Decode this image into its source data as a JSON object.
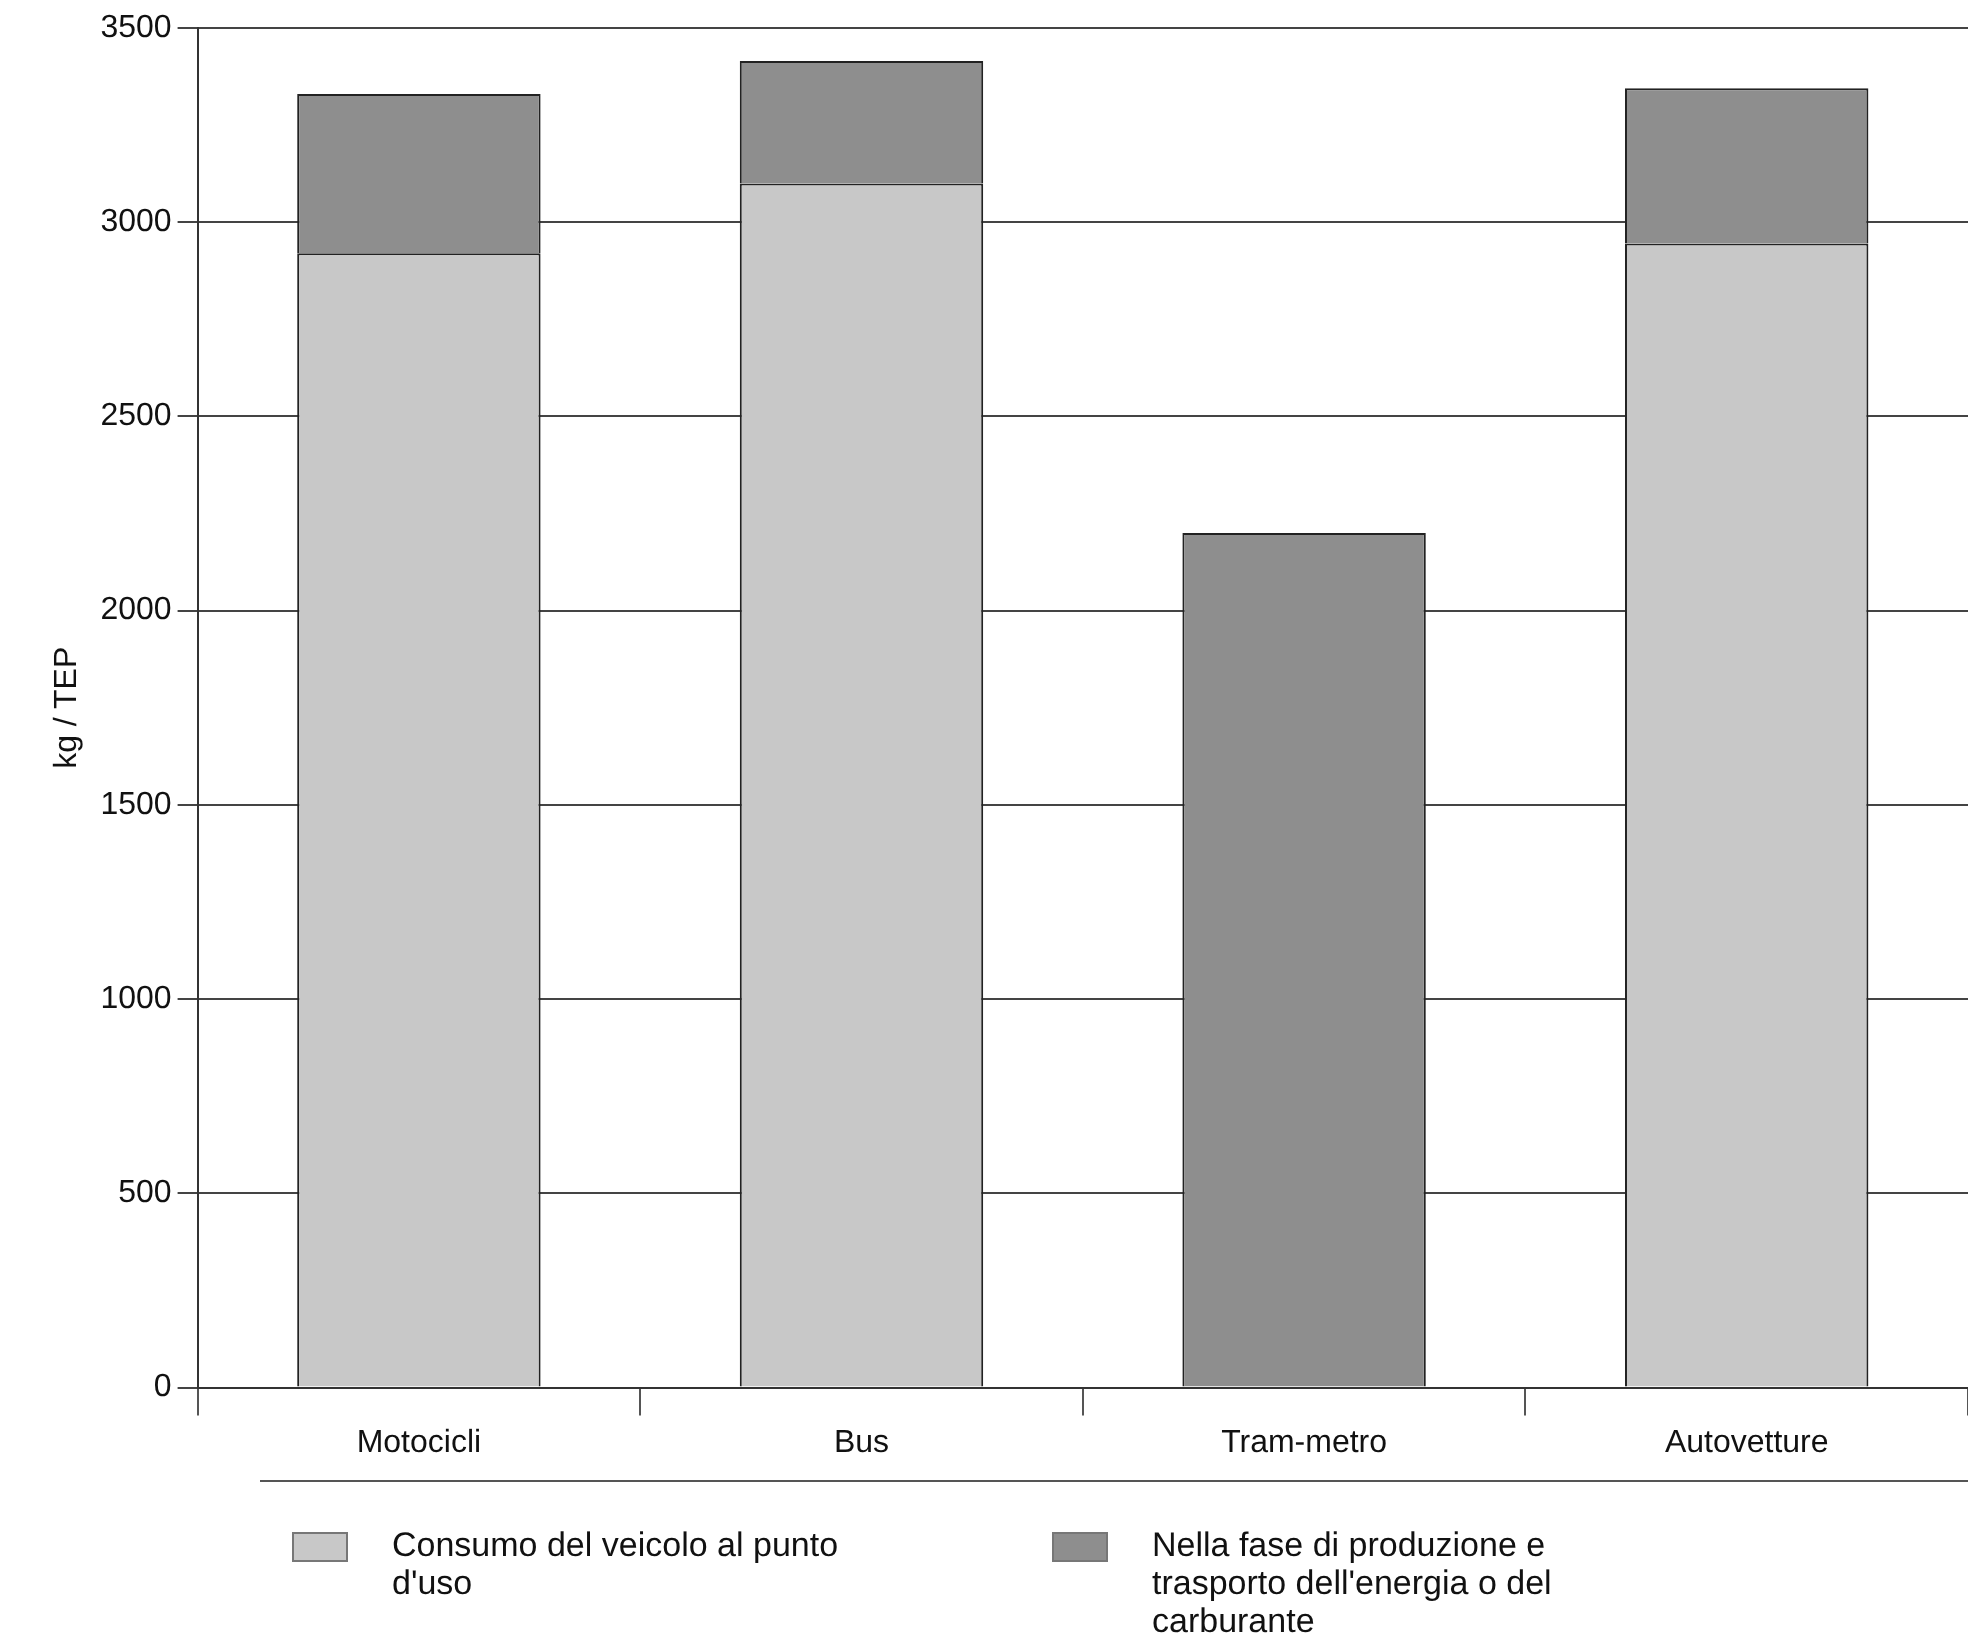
{
  "chart_data": {
    "type": "bar",
    "ylabel": "kg / TEP",
    "categories": [
      "Motocicli",
      "Bus",
      "Tram-metro",
      "Autovetture"
    ],
    "stacked": true,
    "series": [
      {
        "name": "Consumo del veicolo al punto d'uso",
        "color": "#c8c8c8",
        "values": [
          2920,
          3100,
          0,
          2945
        ]
      },
      {
        "name": "Nella fase di produzione e trasporto dell'energia o del carburante",
        "color": "#8e8e8e",
        "values": [
          410,
          315,
          2200,
          400
        ]
      }
    ],
    "ylim": [
      0,
      3500
    ],
    "yticks": [
      0,
      500,
      1000,
      1500,
      2000,
      2500,
      3000,
      3500
    ],
    "grid": "y",
    "legend": "bottom"
  }
}
